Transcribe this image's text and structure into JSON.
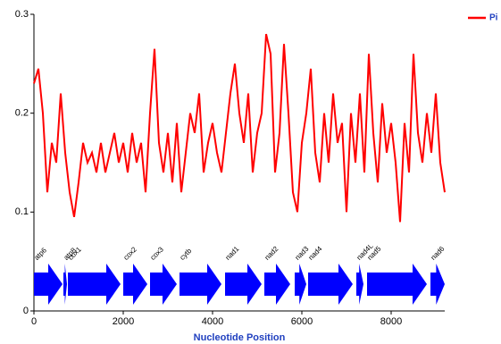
{
  "chart_data": {
    "type": "line",
    "x_label": "Nucleotide Position",
    "x": [
      0,
      100,
      200,
      300,
      400,
      500,
      600,
      700,
      800,
      900,
      1000,
      1100,
      1200,
      1300,
      1400,
      1500,
      1600,
      1700,
      1800,
      1900,
      2000,
      2100,
      2200,
      2300,
      2400,
      2500,
      2600,
      2700,
      2800,
      2900,
      3000,
      3100,
      3200,
      3300,
      3400,
      3500,
      3600,
      3700,
      3800,
      3900,
      4000,
      4100,
      4200,
      4300,
      4400,
      4500,
      4600,
      4700,
      4800,
      4900,
      5000,
      5100,
      5200,
      5300,
      5400,
      5500,
      5600,
      5700,
      5800,
      5900,
      6000,
      6100,
      6200,
      6300,
      6400,
      6500,
      6600,
      6700,
      6800,
      6900,
      7000,
      7100,
      7200,
      7300,
      7400,
      7500,
      7600,
      7700,
      7800,
      7900,
      8000,
      8100,
      8200,
      8300,
      8400,
      8500,
      8600,
      8700,
      8800,
      8900,
      9000,
      9100,
      9200
    ],
    "series": [
      {
        "name": "Pi",
        "color": "#ff0000",
        "values": [
          0.23,
          0.245,
          0.2,
          0.12,
          0.17,
          0.15,
          0.22,
          0.16,
          0.12,
          0.095,
          0.13,
          0.17,
          0.15,
          0.16,
          0.14,
          0.17,
          0.14,
          0.16,
          0.18,
          0.15,
          0.17,
          0.14,
          0.18,
          0.15,
          0.17,
          0.12,
          0.2,
          0.265,
          0.17,
          0.14,
          0.18,
          0.13,
          0.19,
          0.12,
          0.16,
          0.2,
          0.18,
          0.22,
          0.14,
          0.17,
          0.19,
          0.16,
          0.14,
          0.18,
          0.22,
          0.25,
          0.2,
          0.17,
          0.22,
          0.14,
          0.18,
          0.2,
          0.28,
          0.26,
          0.14,
          0.18,
          0.27,
          0.2,
          0.12,
          0.1,
          0.17,
          0.2,
          0.245,
          0.16,
          0.13,
          0.2,
          0.15,
          0.22,
          0.17,
          0.19,
          0.1,
          0.2,
          0.15,
          0.22,
          0.14,
          0.26,
          0.18,
          0.13,
          0.21,
          0.16,
          0.19,
          0.15,
          0.09,
          0.19,
          0.14,
          0.26,
          0.18,
          0.15,
          0.2,
          0.16,
          0.22,
          0.15,
          0.12
        ]
      }
    ],
    "genes": [
      {
        "name": "atp6",
        "start": 0,
        "end": 640
      },
      {
        "name": "atp8",
        "start": 660,
        "end": 740
      },
      {
        "name": "cox1",
        "start": 760,
        "end": 1940
      },
      {
        "name": "cox2",
        "start": 2000,
        "end": 2540
      },
      {
        "name": "cox3",
        "start": 2600,
        "end": 3200
      },
      {
        "name": "cytb",
        "start": 3260,
        "end": 4200
      },
      {
        "name": "nad1",
        "start": 4280,
        "end": 5100
      },
      {
        "name": "nad2",
        "start": 5160,
        "end": 5740
      },
      {
        "name": "nad3",
        "start": 5840,
        "end": 6100
      },
      {
        "name": "nad4",
        "start": 6140,
        "end": 7140
      },
      {
        "name": "nad4L",
        "start": 7220,
        "end": 7380
      },
      {
        "name": "nad5",
        "start": 7460,
        "end": 8800
      },
      {
        "name": "nad6",
        "start": 8880,
        "end": 9200
      }
    ],
    "gene_color": "#0000ff",
    "xlim": [
      0,
      9200
    ],
    "xticks": [
      0,
      2000,
      4000,
      6000,
      8000
    ],
    "ylim": [
      0,
      0.3
    ],
    "yticks": [
      0,
      0.1,
      0.2,
      0.3
    ],
    "legend": "top-right"
  }
}
